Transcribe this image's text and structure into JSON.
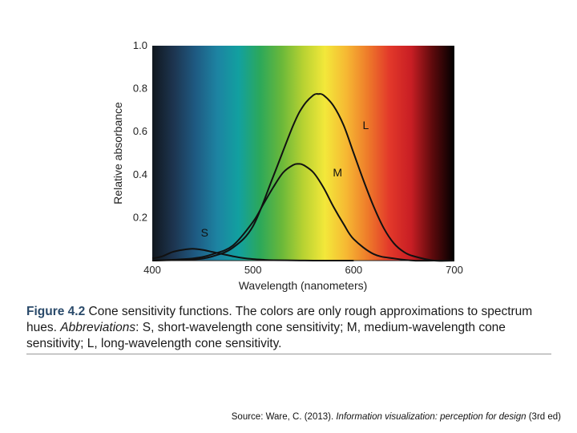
{
  "chart_data": {
    "type": "line",
    "xlabel": "Wavelength (nanometers)",
    "ylabel": "Relative absorbance",
    "xlim": [
      400,
      700
    ],
    "ylim": [
      0,
      1.0
    ],
    "x_ticks": [
      "400",
      "500",
      "600",
      "700"
    ],
    "y_ticks": [
      "0.2",
      "0.4",
      "0.6",
      "0.8",
      "1.0"
    ],
    "series": [
      {
        "name": "S",
        "x": [
          400,
          410,
          420,
          430,
          440,
          450,
          460,
          470,
          480,
          490,
          500,
          510,
          520,
          540,
          560,
          580,
          600
        ],
        "y": [
          0.01,
          0.02,
          0.04,
          0.05,
          0.055,
          0.05,
          0.04,
          0.03,
          0.02,
          0.012,
          0.007,
          0.004,
          0.002,
          0.001,
          0.0,
          0.0,
          0.0
        ]
      },
      {
        "name": "M",
        "x": [
          400,
          440,
          460,
          480,
          500,
          510,
          520,
          530,
          540,
          545,
          550,
          560,
          570,
          580,
          590,
          600,
          620,
          640,
          660,
          680,
          700
        ],
        "y": [
          0.0,
          0.01,
          0.03,
          0.07,
          0.18,
          0.26,
          0.34,
          0.41,
          0.445,
          0.45,
          0.445,
          0.41,
          0.34,
          0.25,
          0.17,
          0.1,
          0.03,
          0.01,
          0.0,
          0.0,
          0.0
        ]
      },
      {
        "name": "L",
        "x": [
          400,
          440,
          460,
          480,
          500,
          520,
          540,
          550,
          560,
          565,
          570,
          580,
          590,
          600,
          610,
          620,
          630,
          640,
          650,
          660,
          680,
          700
        ],
        "y": [
          0.0,
          0.005,
          0.02,
          0.06,
          0.16,
          0.39,
          0.63,
          0.72,
          0.77,
          0.775,
          0.77,
          0.72,
          0.63,
          0.5,
          0.37,
          0.25,
          0.15,
          0.08,
          0.04,
          0.02,
          0.0,
          0.0
        ]
      }
    ],
    "curve_labels": [
      {
        "text": "S",
        "x": 452,
        "y": 0.13
      },
      {
        "text": "M",
        "x": 584,
        "y": 0.41
      },
      {
        "text": "L",
        "x": 612,
        "y": 0.63
      }
    ]
  },
  "caption": {
    "figure_number": "Figure 4.2",
    "part1": "Cone sensitivity functions. The colors are only rough approximations to spectrum hues.",
    "abbrev_label": "Abbreviations",
    "part2": ": S, short-wavelength cone sensitivity; M, medium-wavelength cone sensitivity; L, long-wavelength cone sensitivity."
  },
  "source": {
    "prefix": "Source: Ware, C. (2013). ",
    "title": "Information visualization: perception for design",
    "suffix": " (3rd ed)"
  },
  "colors": {
    "curve": "#111111",
    "spectrum": [
      "#10171e",
      "#1d3550",
      "#1e5a82",
      "#1d83a2",
      "#12a0a0",
      "#2ca85a",
      "#6ab83a",
      "#b8d232",
      "#f3e83a",
      "#f6b833",
      "#ee7a2a",
      "#e2382a",
      "#c81e24",
      "#5c0a0c",
      "#000000"
    ]
  }
}
